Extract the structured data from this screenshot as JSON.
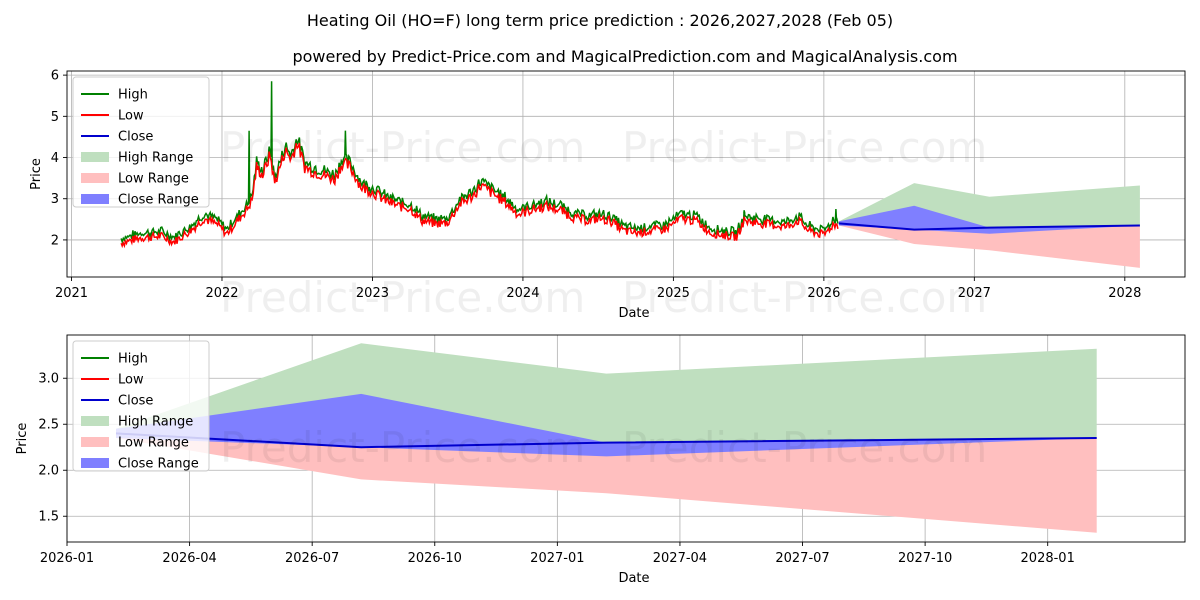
{
  "title": "Heating Oil (HO=F) long term price prediction : 2026,2027,2028 (Feb 05)",
  "subtitle": "powered by Predict-Price.com and MagicalPrediction.com and MagicalAnalysis.com",
  "watermarks": [
    "Predict-Price.com",
    "Predict-Price.com",
    "Predict-Price.com",
    "Predict-Price.com",
    "Predict-Price.com",
    "Predict-Price.com"
  ],
  "colors": {
    "high": "#008000",
    "low": "#ff0000",
    "close": "#0000cd",
    "high_range": "#bfdfbf",
    "low_range": "#ffbfbf",
    "close_range": "#7f7fff",
    "grid": "#b0b0b0"
  },
  "chart_data": [
    {
      "type": "line",
      "name": "long-term",
      "xlabel": "Date",
      "ylabel": "Price",
      "xlim": [
        2020.97,
        2028.4
      ],
      "ylim": [
        1.1,
        6.1
      ],
      "x_ticks": [
        2021,
        2022,
        2023,
        2024,
        2025,
        2026,
        2027,
        2028
      ],
      "x_tick_labels": [
        "2021",
        "2022",
        "2023",
        "2024",
        "2025",
        "2026",
        "2027",
        "2028"
      ],
      "y_ticks": [
        2,
        3,
        4,
        5,
        6
      ],
      "y_tick_labels": [
        "2",
        "3",
        "4",
        "5",
        "6"
      ],
      "legend": [
        "High",
        "Low",
        "Close",
        "High Range",
        "Low Range",
        "Close Range"
      ],
      "legend_position": "top-left",
      "historical_anchors": [
        [
          2021.33,
          1.95
        ],
        [
          2021.45,
          2.08
        ],
        [
          2021.6,
          2.12
        ],
        [
          2021.68,
          1.98
        ],
        [
          2021.8,
          2.28
        ],
        [
          2021.88,
          2.55
        ],
        [
          2021.97,
          2.4
        ],
        [
          2022.03,
          2.18
        ],
        [
          2022.1,
          2.48
        ],
        [
          2022.17,
          2.8
        ],
        [
          2022.2,
          3.0
        ],
        [
          2022.23,
          3.8
        ],
        [
          2022.27,
          3.6
        ],
        [
          2022.32,
          4.1
        ],
        [
          2022.35,
          3.4
        ],
        [
          2022.42,
          4.2
        ],
        [
          2022.46,
          4.0
        ],
        [
          2022.5,
          4.4
        ],
        [
          2022.55,
          3.8
        ],
        [
          2022.6,
          3.7
        ],
        [
          2022.68,
          3.6
        ],
        [
          2022.75,
          3.5
        ],
        [
          2022.8,
          3.9
        ],
        [
          2022.85,
          3.8
        ],
        [
          2022.93,
          3.3
        ],
        [
          2023.0,
          3.2
        ],
        [
          2023.08,
          3.0
        ],
        [
          2023.17,
          2.85
        ],
        [
          2023.25,
          2.8
        ],
        [
          2023.33,
          2.5
        ],
        [
          2023.42,
          2.42
        ],
        [
          2023.5,
          2.45
        ],
        [
          2023.58,
          2.9
        ],
        [
          2023.67,
          3.1
        ],
        [
          2023.72,
          3.35
        ],
        [
          2023.8,
          3.15
        ],
        [
          2023.88,
          2.95
        ],
        [
          2023.97,
          2.65
        ],
        [
          2024.05,
          2.75
        ],
        [
          2024.15,
          2.85
        ],
        [
          2024.25,
          2.75
        ],
        [
          2024.35,
          2.55
        ],
        [
          2024.45,
          2.5
        ],
        [
          2024.5,
          2.55
        ],
        [
          2024.58,
          2.5
        ],
        [
          2024.67,
          2.25
        ],
        [
          2024.75,
          2.2
        ],
        [
          2024.85,
          2.25
        ],
        [
          2024.95,
          2.3
        ],
        [
          2025.05,
          2.55
        ],
        [
          2025.15,
          2.5
        ],
        [
          2025.25,
          2.2
        ],
        [
          2025.33,
          2.15
        ],
        [
          2025.42,
          2.1
        ],
        [
          2025.47,
          2.5
        ],
        [
          2025.55,
          2.45
        ],
        [
          2025.65,
          2.4
        ],
        [
          2025.75,
          2.35
        ],
        [
          2025.83,
          2.5
        ],
        [
          2025.9,
          2.25
        ],
        [
          2026.0,
          2.15
        ],
        [
          2026.06,
          2.4
        ],
        [
          2026.1,
          2.4
        ]
      ],
      "high_spikes": [
        [
          2022.18,
          4.65
        ],
        [
          2022.33,
          5.85
        ],
        [
          2022.82,
          4.65
        ],
        [
          2025.47,
          2.72
        ],
        [
          2026.08,
          2.75
        ]
      ],
      "forecast_x": [
        2026.1,
        2026.6,
        2027.1,
        2028.1
      ],
      "forecast": {
        "close": [
          2.4,
          2.25,
          2.3,
          2.35
        ],
        "high_range_upper": [
          2.45,
          3.38,
          3.05,
          3.32
        ],
        "low_range_lower": [
          2.35,
          1.9,
          1.75,
          1.32
        ],
        "close_range_upper": [
          2.45,
          2.83,
          2.3,
          2.35
        ],
        "close_range_lower": [
          2.35,
          2.25,
          2.15,
          2.35
        ]
      }
    },
    {
      "type": "line",
      "name": "forecast-zoom",
      "xlabel": "Date",
      "ylabel": "Price",
      "xlim": [
        2026.0,
        2028.28
      ],
      "ylim": [
        1.22,
        3.47
      ],
      "x_ticks": [
        2026.0,
        2026.25,
        2026.5,
        2026.75,
        2027.0,
        2027.25,
        2027.5,
        2027.75,
        2028.0
      ],
      "x_tick_labels": [
        "2026-01",
        "2026-04",
        "2026-07",
        "2026-10",
        "2027-01",
        "2027-04",
        "2027-07",
        "2027-10",
        "2028-01"
      ],
      "y_ticks": [
        1.5,
        2.0,
        2.5,
        3.0
      ],
      "y_tick_labels": [
        "1.5",
        "2.0",
        "2.5",
        "3.0"
      ],
      "legend": [
        "High",
        "Low",
        "Close",
        "High Range",
        "Low Range",
        "Close Range"
      ],
      "legend_position": "top-left",
      "forecast_x": [
        2026.1,
        2026.6,
        2027.1,
        2028.1
      ],
      "forecast": {
        "close": [
          2.4,
          2.25,
          2.3,
          2.35
        ],
        "high_range_upper": [
          2.45,
          3.38,
          3.05,
          3.32
        ],
        "low_range_lower": [
          2.35,
          1.9,
          1.75,
          1.32
        ],
        "close_range_upper": [
          2.45,
          2.83,
          2.3,
          2.35
        ],
        "close_range_lower": [
          2.35,
          2.25,
          2.15,
          2.35
        ]
      }
    }
  ]
}
